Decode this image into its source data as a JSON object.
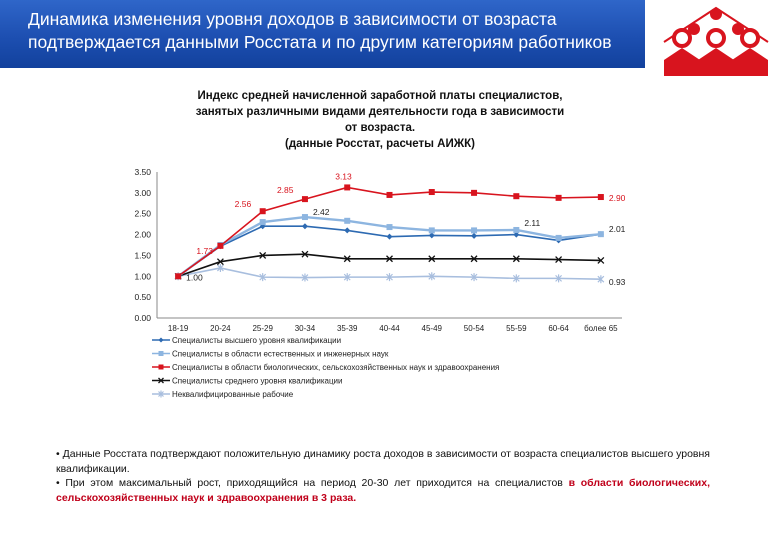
{
  "header": {
    "title_line1": "Динамика изменения уровня доходов в зависимости от возраста",
    "title_line2": "подтверждается данными Росстата и по другим категориям работников"
  },
  "colors": {
    "header_bg": "#1d4fb1",
    "logo_red": "#d8141e",
    "highlight": "#c0001a"
  },
  "chart_title": {
    "line1": "Индекс средней начисленной заработной платы специалистов,",
    "line2": "занятых различными видами деятельности года в зависимости",
    "line3": "от возраста.",
    "line4": "(данные Росстат, расчеты АИЖК)"
  },
  "chart_data": {
    "type": "line",
    "categories": [
      "18-19",
      "20-24",
      "25-29",
      "30-34",
      "35-39",
      "40-44",
      "45-49",
      "50-54",
      "55-59",
      "60-64",
      "более 65"
    ],
    "y_ticks": [
      "0.00",
      "0.50",
      "1.00",
      "1.50",
      "2.00",
      "2.50",
      "3.00",
      "3.50"
    ],
    "ylim": [
      0,
      3.5
    ],
    "grid": false,
    "legend_position": "bottom",
    "series": [
      {
        "name": "Специалисты высшего уровня квалификации",
        "color": "#2d6ab2",
        "marker": "diamond",
        "values": [
          1.0,
          1.72,
          2.2,
          2.2,
          2.1,
          1.95,
          1.98,
          1.97,
          2.0,
          1.86,
          2.01
        ]
      },
      {
        "name": "Специалисты в области естественных и инженерных наук",
        "color": "#8db5e0",
        "marker": "square",
        "values": [
          1.0,
          1.75,
          2.3,
          2.42,
          2.33,
          2.18,
          2.1,
          2.1,
          2.11,
          1.92,
          2.01
        ]
      },
      {
        "name": "Специалисты в области биологических, сельскохозяйственных наук и здравоохранения",
        "color": "#d8141e",
        "marker": "square",
        "values": [
          1.0,
          1.73,
          2.56,
          2.85,
          3.13,
          2.95,
          3.02,
          3.0,
          2.92,
          2.88,
          2.9
        ]
      },
      {
        "name": "Специалисты среднего уровня квалификации",
        "color": "#111111",
        "marker": "x",
        "values": [
          1.0,
          1.35,
          1.5,
          1.53,
          1.42,
          1.42,
          1.42,
          1.42,
          1.42,
          1.4,
          1.38
        ]
      },
      {
        "name": "Неквалифицированные рабочие",
        "color": "#a8bede",
        "marker": "star",
        "values": [
          1.0,
          1.2,
          0.98,
          0.97,
          0.98,
          0.98,
          1.0,
          0.98,
          0.95,
          0.95,
          0.93
        ]
      }
    ],
    "data_labels": [
      {
        "series": 2,
        "index": 1,
        "text": "1.73"
      },
      {
        "series": 2,
        "index": 2,
        "text": "2.56"
      },
      {
        "series": 2,
        "index": 3,
        "text": "2.85"
      },
      {
        "series": 2,
        "index": 4,
        "text": "3.13"
      },
      {
        "series": 2,
        "index": 10,
        "text": "2.90"
      },
      {
        "series": 1,
        "index": 3,
        "text": "2.42"
      },
      {
        "series": 1,
        "index": 8,
        "text": "2.11"
      },
      {
        "series": 1,
        "index": 10,
        "text": "2.01"
      },
      {
        "series": 0,
        "index": 0,
        "text": "1.00"
      },
      {
        "series": 4,
        "index": 10,
        "text": "0.93"
      }
    ]
  },
  "notes": {
    "p1": "• Данные Росстата подтверждают положительную динамику роста доходов в зависимости от возраста специалистов высшего уровня квалификации.",
    "p2_start": "• При этом максимальный рост, приходящийся на период 20-30 лет приходится на специалистов ",
    "p2_highlight": "в области биологических, сельскохозяйственных наук и здравоохранения в 3 раза."
  }
}
